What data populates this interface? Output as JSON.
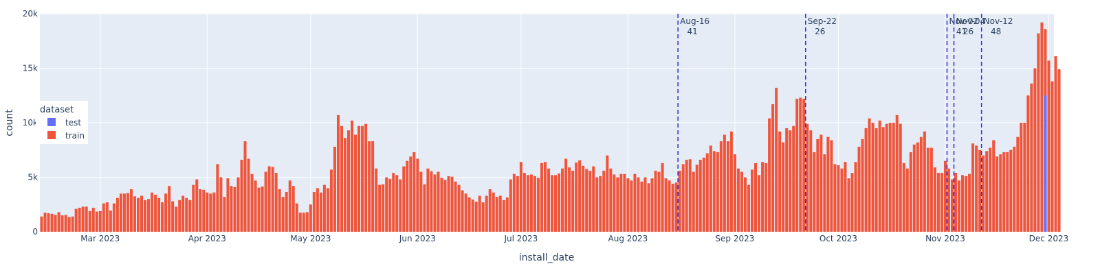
{
  "chart_data": {
    "type": "bar",
    "xlabel": "install_date",
    "ylabel": "count",
    "x_start": "2023-02-12",
    "x_end": "2023-12-02",
    "x_ticks": [
      {
        "date": "2023-03-01",
        "label": "Mar 2023"
      },
      {
        "date": "2023-04-01",
        "label": "Apr 2023"
      },
      {
        "date": "2023-05-01",
        "label": "May 2023"
      },
      {
        "date": "2023-06-01",
        "label": "Jun 2023"
      },
      {
        "date": "2023-07-01",
        "label": "Jul 2023"
      },
      {
        "date": "2023-08-01",
        "label": "Aug 2023"
      },
      {
        "date": "2023-09-01",
        "label": "Sep 2023"
      },
      {
        "date": "2023-10-01",
        "label": "Oct 2023"
      },
      {
        "date": "2023-11-01",
        "label": "Nov 2023"
      },
      {
        "date": "2023-12-01",
        "label": "Dec 2023"
      }
    ],
    "ylim": [
      0,
      20000
    ],
    "y_ticks": [
      {
        "value": 0,
        "label": "0"
      },
      {
        "value": 5000,
        "label": "5k"
      },
      {
        "value": 10000,
        "label": "10k"
      },
      {
        "value": 15000,
        "label": "15k"
      },
      {
        "value": 20000,
        "label": "20k"
      }
    ],
    "legend": {
      "title": "dataset",
      "position": "left",
      "entries": [
        "test",
        "train"
      ]
    },
    "colors": {
      "train": "#EF553B",
      "test": "#636EFA",
      "plot_bg": "#E5ECF6",
      "vline": "#2A2AE8"
    },
    "annotations": [
      {
        "date": "2023-08-16",
        "label": "Aug-16",
        "value": "41"
      },
      {
        "date": "2023-09-22",
        "label": "Sep-22",
        "value": "26"
      },
      {
        "date": "2023-11-02",
        "label": "Nov-02",
        "value": "41"
      },
      {
        "date": "2023-11-04",
        "label": "Nov-04",
        "value": "26"
      },
      {
        "date": "2023-11-12",
        "label": "Nov-12",
        "value": "48"
      }
    ],
    "series": [
      {
        "name": "train",
        "start_date": "2023-02-12",
        "values": [
          1400,
          1750,
          1700,
          1650,
          1550,
          1800,
          1500,
          1550,
          1350,
          1400,
          2100,
          2200,
          2300,
          2300,
          1900,
          2200,
          1850,
          1900,
          2600,
          2700,
          1950,
          2600,
          3100,
          3500,
          3500,
          3550,
          3900,
          3250,
          3100,
          3300,
          2900,
          3000,
          3600,
          3400,
          3100,
          2700,
          3500,
          4200,
          2800,
          2300,
          2900,
          3300,
          3100,
          2900,
          4300,
          4800,
          3900,
          3850,
          3600,
          3500,
          3600,
          6200,
          5000,
          3200,
          4900,
          4200,
          4100,
          5000,
          6600,
          8300,
          6700,
          5300,
          4700,
          4050,
          4150,
          5500,
          6000,
          5950,
          5400,
          3900,
          3200,
          3650,
          4700,
          4200,
          2600,
          1750,
          1750,
          1800,
          2500,
          3650,
          4000,
          3600,
          4300,
          4000,
          5700,
          7800,
          10700,
          9700,
          8600,
          9300,
          10200,
          8900,
          9700,
          9700,
          9900,
          8300,
          8300,
          5800,
          4300,
          4350,
          5000,
          4850,
          5400,
          5200,
          4800,
          6000,
          6500,
          6900,
          7300,
          6700,
          5500,
          4350,
          5800,
          5550,
          5250,
          5500,
          4950,
          4750,
          5100,
          5050,
          4600,
          4300,
          3800,
          3500,
          3150,
          2950,
          2750,
          3300,
          2700,
          3300,
          3900,
          3600,
          3200,
          3300,
          2900,
          3150,
          4800,
          5300,
          5100,
          6400,
          5400,
          5200,
          5250,
          5100,
          4950,
          6300,
          6400,
          5800,
          5200,
          5200,
          5350,
          5800,
          6700,
          5900,
          5600,
          6350,
          6550,
          6050,
          5750,
          5600,
          6000,
          5000,
          5100,
          5600,
          7000,
          5800,
          5250,
          5000,
          5300,
          5300,
          4900,
          4700,
          5300,
          5000,
          4600,
          5000,
          4450,
          4900,
          5600,
          5500,
          6300,
          4900,
          4700,
          4400,
          4500,
          5600,
          6200,
          6600,
          6650,
          5500,
          6150,
          6600,
          6800,
          7200,
          7900,
          7400,
          7300,
          8300,
          8900,
          8300,
          9200,
          7100,
          5800,
          5500,
          5000,
          4300,
          5700,
          6300,
          5200,
          6400,
          6300,
          10400,
          11700,
          13200,
          9200,
          8200,
          9500,
          9300,
          9700,
          12200,
          12300,
          12200,
          9900,
          9300,
          7300,
          8500,
          8900,
          7100,
          8700,
          8400,
          6200,
          6100,
          5800,
          6400,
          4900,
          5400,
          6400,
          7800,
          8500,
          9500,
          10400,
          10000,
          9500,
          10200,
          9600,
          9900,
          10000,
          10000,
          10700,
          9900,
          6300,
          5800,
          7300,
          8000,
          8200,
          8700,
          9200,
          7700,
          7700,
          5900,
          5400,
          5400,
          6500,
          5800,
          4800,
          5400,
          4700,
          5200,
          5100,
          5300,
          8100,
          7900,
          7500,
          7000,
          7400,
          7700,
          8400,
          6900,
          7100,
          7300,
          7300,
          7500,
          7800,
          8700,
          10000,
          10000,
          12500,
          13600,
          15000,
          18200,
          19200,
          18600,
          15700,
          13800,
          16100,
          14900
        ]
      },
      {
        "name": "test",
        "start_date": "2023-11-30",
        "values": [
          12500
        ]
      }
    ]
  }
}
